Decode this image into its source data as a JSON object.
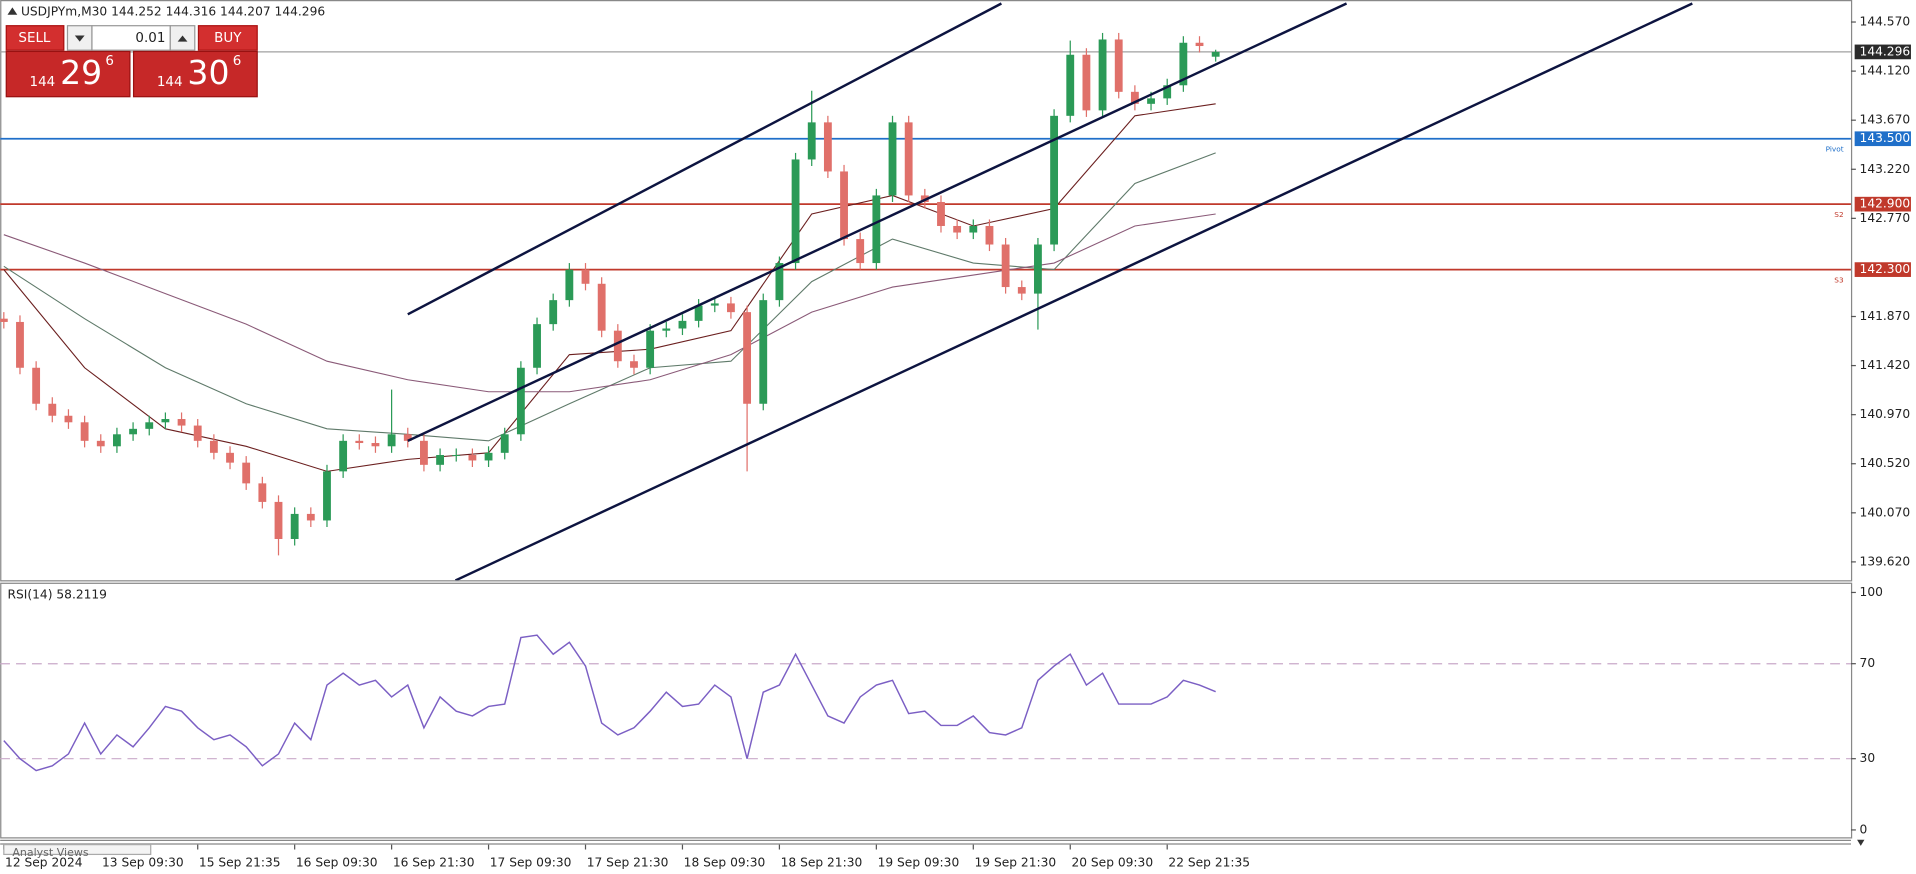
{
  "chart_data": [
    {
      "type": "candlestick",
      "title": "USDJPYm,M30 144.252 144.316 144.207 144.296",
      "categories": [
        "12 Sep 2024",
        null,
        null,
        null,
        null,
        null,
        "13 Sep 09:30",
        null,
        null,
        null,
        null,
        null,
        "15 Sep 21:35",
        null,
        null,
        null,
        null,
        null,
        "16 Sep 09:30",
        null,
        null,
        null,
        null,
        null,
        "16 Sep 21:30",
        null,
        null,
        null,
        null,
        null,
        "17 Sep 09:30",
        null,
        null,
        null,
        null,
        null,
        "17 Sep 21:30",
        null,
        null,
        null,
        null,
        null,
        "18 Sep 09:30",
        null,
        null,
        null,
        null,
        null,
        "18 Sep 21:30",
        null,
        null,
        null,
        null,
        null,
        "19 Sep 09:30",
        null,
        null,
        null,
        null,
        null,
        "19 Sep 21:30",
        null,
        null,
        null,
        null,
        null,
        "20 Sep 09:30",
        null,
        null,
        null,
        null,
        null,
        "22 Sep 21:35",
        null,
        null,
        null
      ],
      "open": [
        141.85,
        141.82,
        141.4,
        141.07,
        140.96,
        140.9,
        140.73,
        140.68,
        140.79,
        140.84,
        140.9,
        140.93,
        140.87,
        140.73,
        140.62,
        140.53,
        140.34,
        140.17,
        139.83,
        140.06,
        140.0,
        140.45,
        140.73,
        140.71,
        140.68,
        140.79,
        140.73,
        140.51,
        140.6,
        140.6,
        140.55,
        140.62,
        140.79,
        141.4,
        141.8,
        142.02,
        142.3,
        142.17,
        141.74,
        141.46,
        141.4,
        141.74,
        141.76,
        141.83,
        141.97,
        141.99,
        141.91,
        141.07,
        142.02,
        142.36,
        143.31,
        143.65,
        143.2,
        142.58,
        142.36,
        142.98,
        143.65,
        142.98,
        142.92,
        142.7,
        142.64,
        142.7,
        142.53,
        142.14,
        142.08,
        142.53,
        143.71,
        144.27,
        143.76,
        144.41,
        143.93,
        143.82,
        143.87,
        143.99,
        144.38,
        144.252
      ],
      "high": [
        141.91,
        141.88,
        141.46,
        141.13,
        141.02,
        140.96,
        140.79,
        140.85,
        140.9,
        140.96,
        140.99,
        140.99,
        140.93,
        140.79,
        140.68,
        140.59,
        140.4,
        140.23,
        140.12,
        140.12,
        140.51,
        140.79,
        140.79,
        140.77,
        141.2,
        140.85,
        140.79,
        140.66,
        140.66,
        140.66,
        140.68,
        140.85,
        141.46,
        141.86,
        142.08,
        142.36,
        142.36,
        142.23,
        141.8,
        141.52,
        141.8,
        141.82,
        141.89,
        142.03,
        142.05,
        142.05,
        141.97,
        142.08,
        142.42,
        143.37,
        143.94,
        143.71,
        143.26,
        142.64,
        143.04,
        143.71,
        143.71,
        143.04,
        142.98,
        142.76,
        142.76,
        142.76,
        142.59,
        142.2,
        142.59,
        143.77,
        144.4,
        144.33,
        144.47,
        144.47,
        143.99,
        143.93,
        144.05,
        144.44,
        144.44,
        144.316
      ],
      "low": [
        141.76,
        141.34,
        141.01,
        140.9,
        140.84,
        140.67,
        140.62,
        140.62,
        140.73,
        140.78,
        140.84,
        140.81,
        140.67,
        140.56,
        140.47,
        140.28,
        140.11,
        139.68,
        139.77,
        139.94,
        139.94,
        140.39,
        140.65,
        140.62,
        140.62,
        140.67,
        140.45,
        140.45,
        140.54,
        140.49,
        140.49,
        140.56,
        140.73,
        141.34,
        141.74,
        141.96,
        142.11,
        141.68,
        141.4,
        141.34,
        141.34,
        141.68,
        141.7,
        141.77,
        141.91,
        141.85,
        140.45,
        141.01,
        141.96,
        142.3,
        143.25,
        143.14,
        142.52,
        142.3,
        142.3,
        142.92,
        142.92,
        142.86,
        142.64,
        142.58,
        142.58,
        142.47,
        142.08,
        142.02,
        141.75,
        142.47,
        143.65,
        143.7,
        143.7,
        143.87,
        143.76,
        143.76,
        143.81,
        143.93,
        144.29,
        144.207
      ],
      "close": [
        141.82,
        141.4,
        141.07,
        140.96,
        140.9,
        140.73,
        140.68,
        140.79,
        140.84,
        140.9,
        140.93,
        140.87,
        140.73,
        140.62,
        140.53,
        140.34,
        140.17,
        139.83,
        140.06,
        140.0,
        140.45,
        140.73,
        140.71,
        140.68,
        140.79,
        140.73,
        140.51,
        140.6,
        140.6,
        140.55,
        140.62,
        140.79,
        141.4,
        141.8,
        142.02,
        142.3,
        142.17,
        141.74,
        141.46,
        141.4,
        141.74,
        141.76,
        141.83,
        141.97,
        141.99,
        141.91,
        141.07,
        142.02,
        142.36,
        143.31,
        143.65,
        143.2,
        142.58,
        142.36,
        142.98,
        143.65,
        142.98,
        142.92,
        142.7,
        142.64,
        142.7,
        142.53,
        142.14,
        142.08,
        142.53,
        143.71,
        144.27,
        143.76,
        144.41,
        143.93,
        143.82,
        143.87,
        143.99,
        144.38,
        144.35,
        144.296
      ],
      "up_color": "#2b9a57",
      "down_color": "#e0706a",
      "ylim": [
        139.452,
        144.772
      ],
      "yticks": [
        {
          "value": 144.57,
          "label": "144.570"
        },
        {
          "value": 144.12,
          "label": "144.120"
        },
        {
          "value": 143.67,
          "label": "143.670"
        },
        {
          "value": 143.22,
          "label": "143.220"
        },
        {
          "value": 142.77,
          "label": "142.770"
        },
        {
          "value": 141.87,
          "label": "141.870"
        },
        {
          "value": 141.42,
          "label": "141.420"
        },
        {
          "value": 140.97,
          "label": "140.970"
        },
        {
          "value": 140.52,
          "label": "140.520"
        },
        {
          "value": 140.07,
          "label": "140.070"
        },
        {
          "value": 139.62,
          "label": "139.620"
        }
      ],
      "current_price_color": "#a0a0a0",
      "levels": [
        {
          "value": 143.5,
          "label": "143.500",
          "note": "Pivot",
          "color": "#1f6fc9"
        },
        {
          "value": 142.9,
          "label": "142.900",
          "note": "S2",
          "color": "#c0392b"
        },
        {
          "value": 142.3,
          "label": "142.300",
          "note": "S3",
          "color": "#c0392b"
        }
      ],
      "ma_lines": [
        {
          "color": "#6b1f1f",
          "x": [
            0,
            5,
            10,
            15,
            20,
            25,
            30,
            35,
            40,
            45,
            50,
            55,
            60,
            65,
            70,
            75
          ],
          "values": [
            142.3,
            141.4,
            140.84,
            140.68,
            140.45,
            140.56,
            140.62,
            141.52,
            141.57,
            141.74,
            142.81,
            142.98,
            142.7,
            142.86,
            143.71,
            143.82
          ]
        },
        {
          "color": "#5f7a6a",
          "x": [
            0,
            5,
            10,
            15,
            20,
            25,
            30,
            35,
            40,
            45,
            50,
            55,
            60,
            65,
            70,
            75
          ],
          "values": [
            142.33,
            141.85,
            141.4,
            141.07,
            140.84,
            140.79,
            140.73,
            141.07,
            141.4,
            141.46,
            142.19,
            142.58,
            142.36,
            142.3,
            143.09,
            143.37
          ]
        },
        {
          "color": "#8a5a78",
          "x": [
            0,
            5,
            10,
            15,
            20,
            25,
            30,
            35,
            40,
            45,
            50,
            55,
            60,
            65,
            70,
            75
          ],
          "values": [
            142.62,
            142.36,
            142.08,
            141.8,
            141.46,
            141.29,
            141.18,
            141.18,
            141.29,
            141.52,
            141.91,
            142.14,
            142.25,
            142.36,
            142.7,
            142.81
          ]
        }
      ],
      "trend_lines": [
        {
          "color": "#0d1440",
          "x": [
            25,
            61.74
          ],
          "values": [
            141.89,
            144.74
          ]
        },
        {
          "color": "#0d1440",
          "x": [
            25,
            83.1
          ],
          "values": [
            140.73,
            144.74
          ]
        },
        {
          "color": "#0d1440",
          "x": [
            27.95,
            104.5
          ],
          "values": [
            139.45,
            144.74
          ]
        }
      ]
    },
    {
      "type": "line",
      "title": "RSI(14) 58.2119",
      "color": "#7b5fc4",
      "values": [
        37.6,
        30,
        25,
        27,
        32,
        45,
        32,
        40,
        35,
        43,
        52,
        50,
        43,
        38,
        40,
        35,
        27,
        32,
        45,
        38,
        61,
        66,
        61,
        63,
        56,
        61,
        43,
        56,
        50,
        48,
        52,
        53,
        81,
        82,
        74,
        79,
        69,
        45,
        40,
        43,
        50,
        58,
        52,
        53,
        61,
        56,
        30,
        58,
        61,
        74,
        61,
        48,
        45,
        56,
        61,
        63,
        49,
        50,
        44,
        44,
        48,
        41,
        40,
        43,
        63,
        69,
        74,
        61,
        66,
        53,
        53,
        53,
        56,
        63,
        61,
        58.2119
      ],
      "ylim": [
        0,
        100
      ],
      "yticks": [
        0,
        30,
        70,
        100
      ],
      "levels": [
        30,
        70
      ]
    }
  ],
  "trade_panel": {
    "sell": "SELL",
    "buy": "BUY",
    "lot": "0.01",
    "sell_big": "144",
    "sell_pips": "29",
    "sell_frac": "6",
    "buy_big": "144",
    "buy_pips": "30",
    "buy_frac": "6"
  },
  "footer_tab": "Analyst Views"
}
